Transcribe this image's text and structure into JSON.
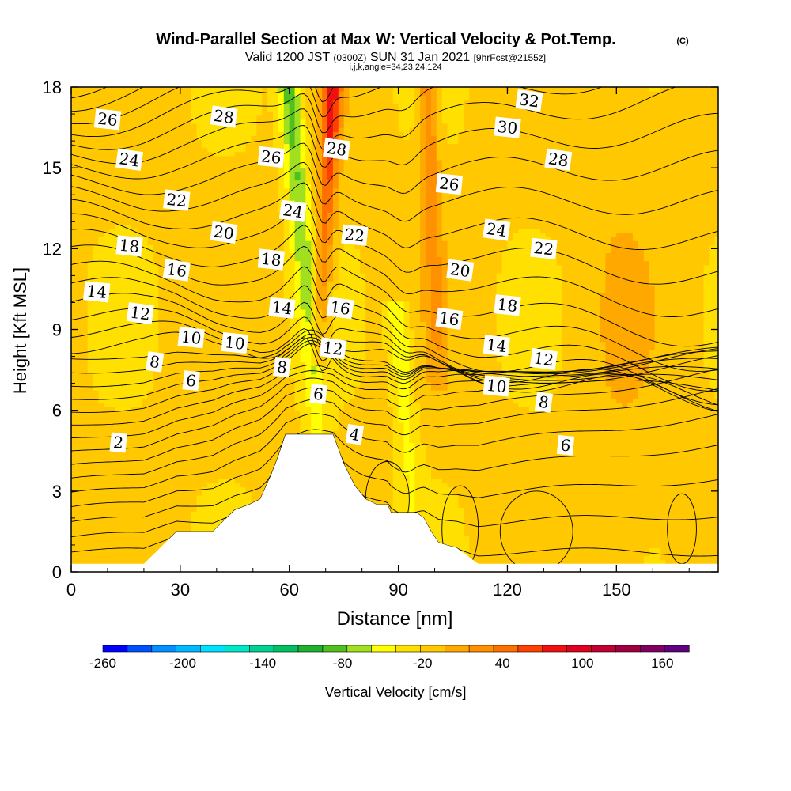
{
  "title": "Wind-Parallel Section at Max W: Vertical Velocity & Pot.Temp.",
  "copyright": "(C)",
  "subtitle_pre": "Valid 1200 JST ",
  "subtitle_utc": "(0300Z)",
  "subtitle_main": " SUN 31 Jan 2021 ",
  "subtitle_fcst": "[9hrFcst@2155z]",
  "subtitle2": "i,j,k,angle=34,23,24,124",
  "chart_data": {
    "type": "heatmap",
    "title": "Wind-Parallel Section at Max W: Vertical Velocity & Pot.Temp.",
    "xlabel": "Distance [nm]",
    "ylabel": "Height [Kft MSL]",
    "xlim": [
      0,
      178
    ],
    "ylim": [
      0,
      18
    ],
    "x_ticks": [
      0,
      30,
      60,
      90,
      120,
      150
    ],
    "y_ticks": [
      0,
      3,
      6,
      9,
      12,
      15,
      18
    ],
    "colorbar": {
      "label": "Vertical Velocity [cm/s]",
      "min": -260,
      "max": 180,
      "step": 20,
      "tick_values": [
        -260,
        -200,
        -140,
        -80,
        -20,
        40,
        100,
        160
      ],
      "colors": [
        "#0000ff",
        "#0050ff",
        "#0090ff",
        "#00b8ff",
        "#00e0ff",
        "#00e8c8",
        "#00d090",
        "#00c060",
        "#20b030",
        "#50c020",
        "#a0e020",
        "#ffff00",
        "#ffe000",
        "#ffc800",
        "#ffa800",
        "#ff9000",
        "#ff7000",
        "#ff4000",
        "#f01010",
        "#e00020",
        "#c00030",
        "#a00040",
        "#800060",
        "#600080"
      ]
    },
    "terrain_kft": [
      [
        0,
        0.3
      ],
      [
        10,
        0.3
      ],
      [
        20,
        0.3
      ],
      [
        23,
        0.7
      ],
      [
        26,
        1.1
      ],
      [
        29,
        1.5
      ],
      [
        33,
        1.5
      ],
      [
        36,
        1.5
      ],
      [
        39,
        1.5
      ],
      [
        42,
        1.9
      ],
      [
        45,
        2.3
      ],
      [
        49,
        2.5
      ],
      [
        52,
        2.7
      ],
      [
        55,
        3.6
      ],
      [
        57,
        4.3
      ],
      [
        59,
        5.1
      ],
      [
        63,
        5.1
      ],
      [
        67,
        5.1
      ],
      [
        72,
        5.1
      ],
      [
        75,
        4.0
      ],
      [
        78,
        3.2
      ],
      [
        81,
        2.7
      ],
      [
        84,
        2.5
      ],
      [
        87,
        2.5
      ],
      [
        88,
        2.2
      ],
      [
        89,
        2.2
      ],
      [
        92,
        2.2
      ],
      [
        95,
        2.2
      ],
      [
        97,
        2.0
      ],
      [
        99,
        1.5
      ],
      [
        101,
        1.1
      ],
      [
        103,
        1.0
      ],
      [
        106,
        0.9
      ],
      [
        109,
        0.6
      ],
      [
        112,
        0.3
      ],
      [
        178,
        0.3
      ]
    ],
    "vertical_velocity_features": [
      {
        "kind": "downdraft",
        "x_bottom": 68,
        "x_top": 60,
        "z_bottom": 5.2,
        "z_top": 18,
        "peak": -80
      },
      {
        "kind": "updraft",
        "x_bottom": 68,
        "x_top": 72,
        "z_bottom": 8,
        "z_top": 18,
        "peak": 100
      },
      {
        "kind": "downdraft",
        "x_bottom": 94,
        "x_top": 90,
        "z_bottom": 2.2,
        "z_top": 9.5,
        "peak": -50
      },
      {
        "kind": "updraft",
        "x_bottom": 101,
        "x_top": 98,
        "z_bottom": 7,
        "z_top": 18,
        "peak": 60
      }
    ],
    "potential_temperature": {
      "contour_interval": 1,
      "labels": [
        {
          "value": 26,
          "x": 10,
          "z": 16.8
        },
        {
          "value": 28,
          "x": 42,
          "z": 16.9
        },
        {
          "value": 24,
          "x": 16,
          "z": 15.3
        },
        {
          "value": 26,
          "x": 55,
          "z": 15.4
        },
        {
          "value": 28,
          "x": 73,
          "z": 15.7
        },
        {
          "value": 32,
          "x": 126,
          "z": 17.5
        },
        {
          "value": 30,
          "x": 120,
          "z": 16.5
        },
        {
          "value": 28,
          "x": 134,
          "z": 15.3
        },
        {
          "value": 26,
          "x": 104,
          "z": 14.4
        },
        {
          "value": 22,
          "x": 29,
          "z": 13.8
        },
        {
          "value": 24,
          "x": 61,
          "z": 13.4
        },
        {
          "value": 22,
          "x": 78,
          "z": 12.5
        },
        {
          "value": 24,
          "x": 117,
          "z": 12.7
        },
        {
          "value": 22,
          "x": 130,
          "z": 12.0
        },
        {
          "value": 20,
          "x": 42,
          "z": 12.6
        },
        {
          "value": 18,
          "x": 16,
          "z": 12.1
        },
        {
          "value": 18,
          "x": 55,
          "z": 11.6
        },
        {
          "value": 20,
          "x": 107,
          "z": 11.2
        },
        {
          "value": 16,
          "x": 29,
          "z": 11.2
        },
        {
          "value": 14,
          "x": 7,
          "z": 10.4
        },
        {
          "value": 14,
          "x": 58,
          "z": 9.8
        },
        {
          "value": 16,
          "x": 74,
          "z": 9.8
        },
        {
          "value": 18,
          "x": 120,
          "z": 9.9
        },
        {
          "value": 16,
          "x": 104,
          "z": 9.4
        },
        {
          "value": 12,
          "x": 19,
          "z": 9.6
        },
        {
          "value": 10,
          "x": 33,
          "z": 8.7
        },
        {
          "value": 10,
          "x": 45,
          "z": 8.5
        },
        {
          "value": 12,
          "x": 72,
          "z": 8.3
        },
        {
          "value": 14,
          "x": 117,
          "z": 8.4
        },
        {
          "value": 12,
          "x": 130,
          "z": 7.9
        },
        {
          "value": 8,
          "x": 23,
          "z": 7.8
        },
        {
          "value": 8,
          "x": 58,
          "z": 7.6
        },
        {
          "value": 6,
          "x": 33,
          "z": 7.1
        },
        {
          "value": 10,
          "x": 117,
          "z": 6.9
        },
        {
          "value": 8,
          "x": 130,
          "z": 6.3
        },
        {
          "value": 6,
          "x": 68,
          "z": 6.6
        },
        {
          "value": 4,
          "x": 78,
          "z": 5.1
        },
        {
          "value": 6,
          "x": 136,
          "z": 4.7
        },
        {
          "value": 2,
          "x": 13,
          "z": 4.8
        }
      ]
    }
  }
}
